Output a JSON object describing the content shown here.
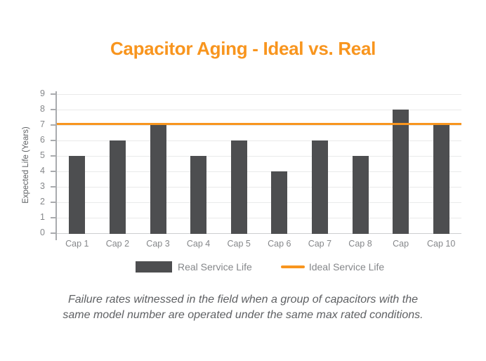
{
  "chart_data": {
    "type": "bar",
    "title": "Capacitor Aging - Ideal vs. Real",
    "categories": [
      "Cap 1",
      "Cap 2",
      "Cap 3",
      "Cap 4",
      "Cap 5",
      "Cap 6",
      "Cap 7",
      "Cap 8",
      "Cap",
      "Cap 10"
    ],
    "series": [
      {
        "name": "Real Service Life",
        "type": "bar",
        "color": "#4D4E50",
        "values": [
          5,
          6,
          7,
          5,
          6,
          4,
          6,
          5,
          8,
          7
        ]
      },
      {
        "name": "Ideal Service Life",
        "type": "line",
        "color": "#F8951E",
        "values": [
          7,
          7,
          7,
          7,
          7,
          7,
          7,
          7,
          7,
          7
        ]
      }
    ],
    "xlabel": "",
    "ylabel": "Expected Life (Years)",
    "ylim": [
      0,
      9
    ],
    "yticks": [
      "0",
      "1",
      "2",
      "3",
      "4",
      "5",
      "6",
      "7",
      "8",
      "9"
    ],
    "grid": true,
    "legend_position": "bottom-center"
  },
  "caption": {
    "line1": "Failure rates witnessed in the field when a group of capacitors with the",
    "line2": "same model number are operated under the same max rated conditions."
  },
  "colors": {
    "accent_orange": "#F8951E",
    "bar_gray": "#4D4E50",
    "grid_line": "#E9EAEA",
    "baseline": "#CDCFD0",
    "axis_line": "#A9ABAE",
    "tick_text": "#85878A",
    "muted_text": "#5E6063",
    "background": "#FFFFFF"
  }
}
